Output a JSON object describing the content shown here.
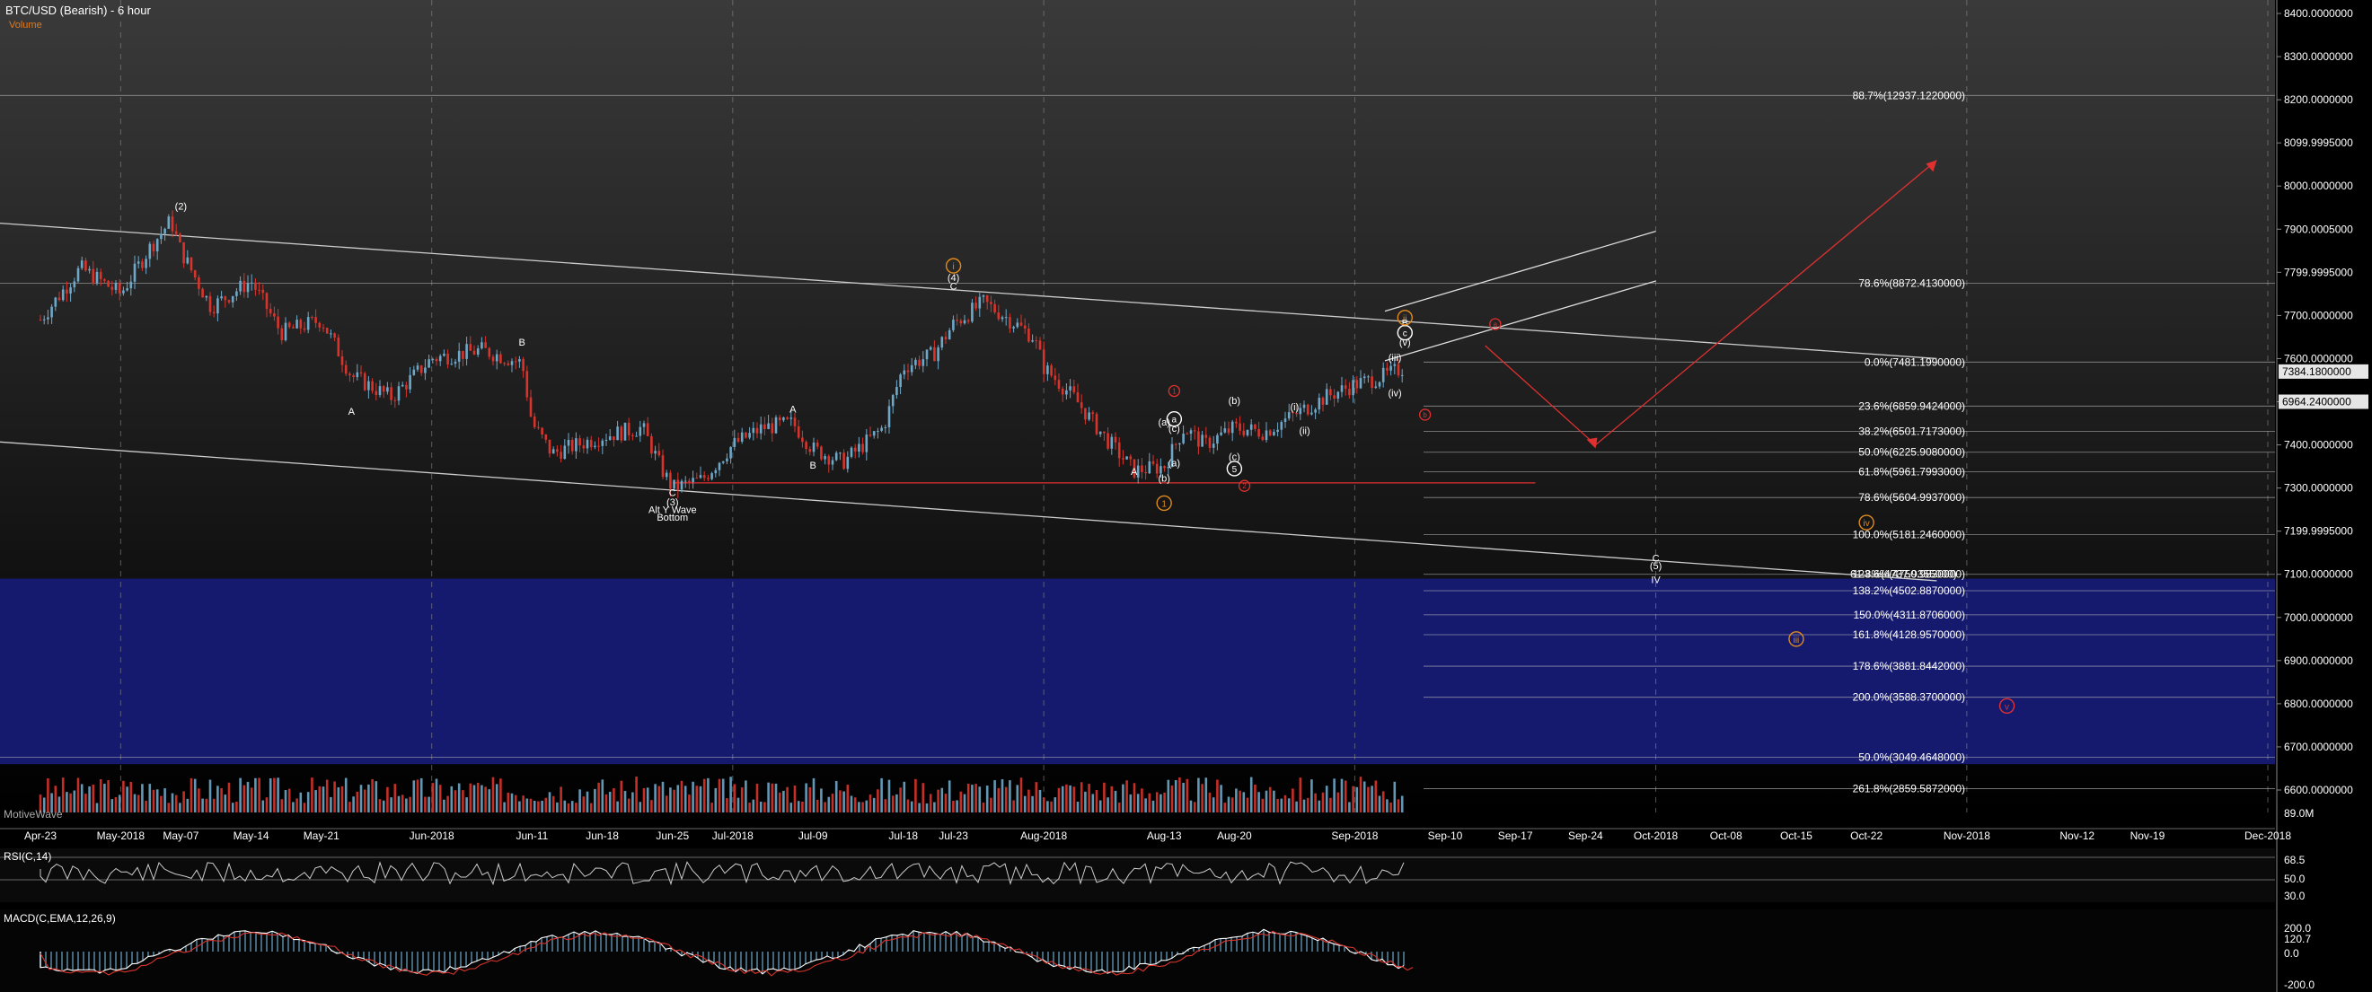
{
  "header": {
    "title": "BTC/USD (Bearish) - 6 hour",
    "subtitle": "Volume"
  },
  "watermark": "MotiveWave",
  "panes": {
    "rsi_label": "RSI(C,14)",
    "macd_label": "MACD(C,EMA,12,26,9)"
  },
  "colors": {
    "background": "#000000",
    "bull_bar": "#6ea8c9",
    "bear_bar": "#d9342b",
    "projection_zone": "#161a6e",
    "fib_orange": "#e08a1c",
    "wave_red": "#e03030"
  },
  "chart_data": [
    {
      "type": "candlestick",
      "title": "BTC/USD (Bearish) - 6 hour",
      "ylim": [
        6600,
        8450
      ],
      "grid": true,
      "x_tick_labels": [
        "Apr-23",
        "May-2018",
        "May-07",
        "May-14",
        "May-21",
        "Jun-2018",
        "Jun-11",
        "Jun-18",
        "Jun-25",
        "Jul-2018",
        "Jul-09",
        "Jul-18",
        "Jul-23",
        "Aug-2018",
        "Aug-13",
        "Aug-20",
        "Sep-2018",
        "Sep-10",
        "Sep-17",
        "Sep-24",
        "Oct-2018",
        "Oct-08",
        "Oct-15",
        "Oct-22",
        "Nov-2018",
        "Nov-12",
        "Nov-19",
        "Dec-2018"
      ],
      "y_tick_labels": [
        "8400.0000000",
        "8300.0000000",
        "8200.0000000",
        "8099.9995000",
        "8000.0000000",
        "7900.0005000",
        "7799.9995000",
        "7700.0000000",
        "7600.0000000",
        "7500.0000000",
        "7400.0000000",
        "7300.0000000",
        "7199.9995000",
        "7100.0000000",
        "7000.0000000",
        "6900.0000000",
        "6800.0000000",
        "6700.0000000",
        "6600.0000000"
      ],
      "price_path": [
        [
          "Apr-23",
          7690
        ],
        [
          "Apr-27",
          7810
        ],
        [
          "May-2018",
          7750
        ],
        [
          "May-04",
          7860
        ],
        [
          "May-06",
          7920
        ],
        [
          "May-07",
          7850
        ],
        [
          "May-10",
          7720
        ],
        [
          "May-14",
          7780
        ],
        [
          "May-17",
          7660
        ],
        [
          "May-21",
          7690
        ],
        [
          "May-24",
          7560
        ],
        [
          "May-28",
          7510
        ],
        [
          "Jun-2018",
          7600
        ],
        [
          "Jun-06",
          7620
        ],
        [
          "Jun-10",
          7590
        ],
        [
          "Jun-11",
          7450
        ],
        [
          "Jun-13",
          7380
        ],
        [
          "Jun-18",
          7420
        ],
        [
          "Jun-22",
          7440
        ],
        [
          "Jun-24",
          7340
        ],
        [
          "Jun-25",
          7300
        ],
        [
          "Jun-28",
          7320
        ],
        [
          "Jul-2018",
          7400
        ],
        [
          "Jul-04",
          7440
        ],
        [
          "Jul-07",
          7450
        ],
        [
          "Jul-09",
          7390
        ],
        [
          "Jul-12",
          7360
        ],
        [
          "Jul-16",
          7440
        ],
        [
          "Jul-18",
          7580
        ],
        [
          "Jul-21",
          7610
        ],
        [
          "Jul-23",
          7680
        ],
        [
          "Jul-26",
          7730
        ],
        [
          "Jul-28",
          7700
        ],
        [
          "Jul-31",
          7650
        ],
        [
          "Aug-2018",
          7580
        ],
        [
          "Aug-04",
          7510
        ],
        [
          "Aug-07",
          7420
        ],
        [
          "Aug-10",
          7340
        ],
        [
          "Aug-13",
          7350
        ],
        [
          "Aug-15",
          7440
        ],
        [
          "Aug-17",
          7400
        ],
        [
          "Aug-20",
          7440
        ],
        [
          "Aug-23",
          7430
        ],
        [
          "Aug-26",
          7470
        ],
        [
          "Aug-29",
          7510
        ],
        [
          "Sep-2018",
          7540
        ],
        [
          "Sep-04",
          7560
        ],
        [
          "Sep-06",
          7580
        ]
      ],
      "price_badges": [
        "7384.1800000",
        "6964.2400000"
      ],
      "fib_levels_right": [
        {
          "label": "88.7%(12937.1220000)",
          "price": 8210
        },
        {
          "label": "78.6%(8872.4130000)",
          "price": 7775
        },
        {
          "label": "0.0%(7481.1990000)",
          "price": 7592
        },
        {
          "label": "23.6%(6859.9424000)",
          "price": 7490
        },
        {
          "label": "38.2%(6501.7173000)",
          "price": 7431
        },
        {
          "label": "50.0%(6225.9080000)",
          "price": 7383
        },
        {
          "label": "61.8%(5961.7993000)",
          "price": 7338
        },
        {
          "label": "78.6%(5604.9937000)",
          "price": 7278
        },
        {
          "label": "100.0%(5181.2460000)",
          "price": 7192
        },
        {
          "label": "123.6%(4750.9830000)",
          "price": 7100
        },
        {
          "label": "138.2%(4502.8870000)",
          "price": 7062
        },
        {
          "label": "150.0%(4311.8706000)",
          "price": 7006
        },
        {
          "label": "161.8%(4128.9570000)",
          "price": 6960
        },
        {
          "label": "178.6%(3881.8442000)",
          "price": 6887
        },
        {
          "label": "200.0%(3588.3700000)",
          "price": 6815
        },
        {
          "label": "50.0%(3049.4648000)",
          "price": 6676
        },
        {
          "label": "261.8%(2859.5872000)",
          "price": 6603
        }
      ],
      "fib_levels_mid": [
        {
          "label": "61.8%(4737.9355000)",
          "price": 7100
        }
      ],
      "projection_zone": {
        "from": 6660,
        "to": 7090
      },
      "wave_labels": [
        {
          "text": "(2)",
          "date": "May-07",
          "price": 7945
        },
        {
          "text": "A",
          "date": "May-24",
          "price": 7470
        },
        {
          "text": "B",
          "date": "Jun-10",
          "price": 7630
        },
        {
          "text": "C",
          "date": "Jun-25",
          "price": 7282
        },
        {
          "text": "(3)",
          "date": "Jun-25",
          "price": 7260
        },
        {
          "text": "Alt Y Wave",
          "date": "Jun-25",
          "price": 7242
        },
        {
          "text": "Bottom",
          "date": "Jun-25",
          "price": 7224
        },
        {
          "text": "A",
          "date": "Jul-07",
          "price": 7475
        },
        {
          "text": "B",
          "date": "Jul-09",
          "price": 7345
        },
        {
          "text": "(4)",
          "date": "Jul-23",
          "price": 7780
        },
        {
          "text": "C",
          "date": "Jul-23",
          "price": 7760
        },
        {
          "text": "A",
          "date": "Aug-10",
          "price": 7330
        },
        {
          "text": "(a)",
          "date": "Aug-13",
          "price": 7445
        },
        {
          "text": "(c)",
          "date": "Aug-14",
          "price": 7430
        },
        {
          "text": "(a)",
          "date": "Aug-14",
          "price": 7350
        },
        {
          "text": "(b)",
          "date": "Aug-13",
          "price": 7315
        },
        {
          "text": "(b)",
          "date": "Aug-20",
          "price": 7495
        },
        {
          "text": "(c)",
          "date": "Aug-20",
          "price": 7365
        },
        {
          "text": "(i)",
          "date": "Aug-26",
          "price": 7480
        },
        {
          "text": "(ii)",
          "date": "Aug-27",
          "price": 7425
        },
        {
          "text": "(iii)",
          "date": "Sep-05",
          "price": 7595
        },
        {
          "text": "(iv)",
          "date": "Sep-05",
          "price": 7513
        },
        {
          "text": "(v)",
          "date": "Sep-06",
          "price": 7630
        },
        {
          "text": "B",
          "date": "Sep-06",
          "price": 7675
        },
        {
          "text": "C",
          "date": "Oct-2018",
          "price": 7130
        },
        {
          "text": "(5)",
          "date": "Oct-2018",
          "price": 7112
        },
        {
          "text": "IV",
          "date": "Oct-2018",
          "price": 7080
        }
      ],
      "circled_labels": [
        {
          "text": "i",
          "date": "Jul-23",
          "price": 7815,
          "color": "#e08a1c"
        },
        {
          "text": "a",
          "date": "Aug-14",
          "price": 7460,
          "color": "#ffffff"
        },
        {
          "text": "5",
          "date": "Aug-20",
          "price": 7345,
          "color": "#ffffff"
        },
        {
          "text": "1",
          "date": "Aug-13",
          "price": 7265,
          "color": "#e08a1c"
        },
        {
          "text": "c",
          "date": "Sep-06",
          "price": 7660,
          "color": "#ffffff"
        },
        {
          "text": "ii",
          "date": "Sep-06",
          "price": 7695,
          "color": "#e08a1c"
        },
        {
          "text": "iv",
          "date": "Oct-22",
          "price": 7220,
          "color": "#e08a1c"
        },
        {
          "text": "iii",
          "date": "Oct-15",
          "price": 6950,
          "color": "#e08a1c"
        },
        {
          "text": "v",
          "date": "Nov-05",
          "price": 6795,
          "color": "#e03030"
        }
      ],
      "red_circles": [
        {
          "text": "1",
          "date": "Aug-14",
          "price": 7525
        },
        {
          "text": "2",
          "date": "Aug-21",
          "price": 7305
        },
        {
          "text": "b",
          "date": "Sep-08",
          "price": 7470
        },
        {
          "text": "a",
          "date": "Sep-15",
          "price": 7680
        }
      ],
      "trend_lines": [
        {
          "from": [
            "Apr-09",
            7930
          ],
          "to": [
            "Oct-29",
            7600
          ],
          "color": "#cccccc"
        },
        {
          "from": [
            "Apr-05",
            7430
          ],
          "to": [
            "Oct-29",
            7085
          ],
          "color": "#cccccc"
        },
        {
          "from": [
            "Sep-04",
            7595
          ],
          "to": [
            "Oct-2018",
            7780
          ],
          "color": "#dddddd"
        },
        {
          "from": [
            "Sep-04",
            7710
          ],
          "to": [
            "Oct-2018",
            7895
          ],
          "color": "#dddddd"
        },
        {
          "from": [
            "Jun-25",
            7312
          ],
          "to": [
            "Sep-19",
            7312
          ],
          "color": "#e03030"
        },
        {
          "from": [
            "Sep-14",
            7630
          ],
          "to": [
            "Sep-25",
            7400
          ],
          "color": "#e03030"
        },
        {
          "from": [
            "Sep-25",
            7400
          ],
          "to": [
            "Oct-29",
            8060
          ],
          "color": "#e03030"
        }
      ]
    },
    {
      "type": "bar",
      "title": "Volume",
      "axis_label": "89.0M"
    },
    {
      "type": "line",
      "title": "RSI(C,14)",
      "y_tick_labels": [
        "68.5",
        "50.0",
        "30.0"
      ]
    },
    {
      "type": "line",
      "title": "MACD(C,EMA,12,26,9)",
      "y_tick_labels": [
        "200.0",
        "120.7",
        "0.0",
        "-200.0"
      ]
    }
  ]
}
